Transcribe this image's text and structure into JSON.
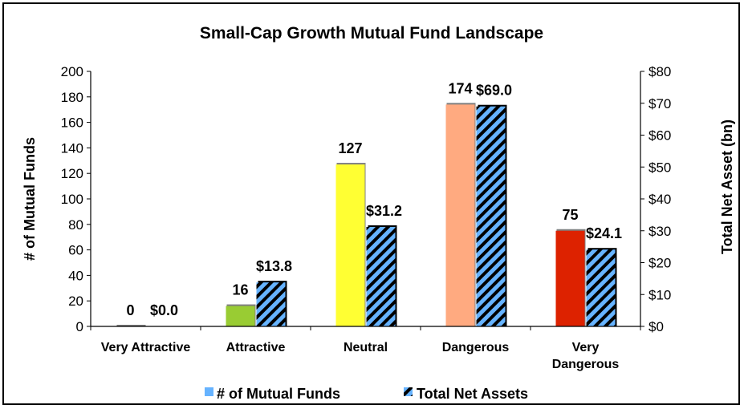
{
  "chart_data": {
    "type": "bar",
    "title": "Small-Cap Growth Mutual Fund Landscape",
    "categories": [
      "Very Attractive",
      "Attractive",
      "Neutral",
      "Dangerous",
      "Very Dangerous"
    ],
    "category_lines": [
      [
        "Very Attractive"
      ],
      [
        "Attractive"
      ],
      [
        "Neutral"
      ],
      [
        "Dangerous"
      ],
      [
        "Very",
        "Dangerous"
      ]
    ],
    "series": [
      {
        "name": "# of Mutual Funds",
        "axis": "left",
        "values": [
          0,
          16,
          127,
          174,
          75
        ],
        "labels": [
          "0",
          "16",
          "127",
          "174",
          "75"
        ],
        "colors": [
          "#a6a6a6",
          "#99cc33",
          "#ffff33",
          "#ffaa80",
          "#dd2200"
        ]
      },
      {
        "name": "Total Net Assets",
        "axis": "right",
        "values": [
          0.0,
          13.8,
          31.2,
          69.0,
          24.1
        ],
        "labels": [
          "$0.0",
          "$13.8",
          "$31.2",
          "$69.0",
          "$24.1"
        ],
        "pattern_colors": [
          "#66b3ff",
          "#000000"
        ]
      }
    ],
    "ylabel_left": "# of Mutual Funds",
    "ylabel_right": "Total Net Asset (bn)",
    "ylim_left": [
      0,
      200
    ],
    "ylim_right": [
      0,
      80
    ],
    "yticks_left": [
      "0",
      "20",
      "40",
      "60",
      "80",
      "100",
      "120",
      "140",
      "160",
      "180",
      "200"
    ],
    "yticks_right": [
      "$0",
      "$10",
      "$20",
      "$30",
      "$40",
      "$50",
      "$60",
      "$70",
      "$80"
    ],
    "grid": false,
    "legend": "bottom",
    "legend_colors": [
      "#66b3ff",
      "#000000"
    ]
  }
}
